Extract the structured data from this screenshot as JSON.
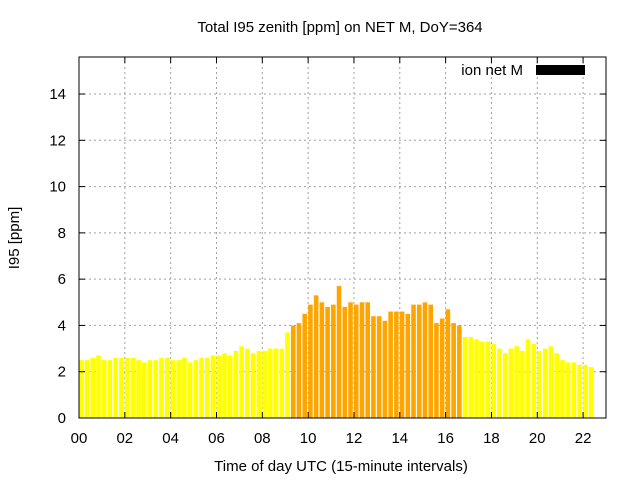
{
  "chart_data": {
    "type": "bar",
    "title": "Total I95 zenith [ppm] on NET M, DoY=364",
    "xlabel": "Time of day UTC (15-minute intervals)",
    "ylabel": "I95 [ppm]",
    "legend": {
      "label": "ion net M",
      "placement": "top-right",
      "color": "#000000"
    },
    "grid": true,
    "xlim": [
      0,
      23
    ],
    "ylim": [
      0,
      15.6
    ],
    "xticks": [
      "00",
      "02",
      "04",
      "06",
      "08",
      "10",
      "12",
      "14",
      "16",
      "18",
      "20",
      "22"
    ],
    "yticks": [
      "0",
      "2",
      "4",
      "6",
      "8",
      "10",
      "12",
      "14"
    ],
    "x_interval_hours": 0.25,
    "colors": {
      "low": "#ffff00",
      "elevated": "#ffa500"
    },
    "threshold": 4,
    "values": [
      2.5,
      2.5,
      2.6,
      2.7,
      2.5,
      2.5,
      2.6,
      2.6,
      2.6,
      2.6,
      2.5,
      2.4,
      2.5,
      2.5,
      2.6,
      2.6,
      2.5,
      2.5,
      2.6,
      2.4,
      2.5,
      2.6,
      2.6,
      2.7,
      2.7,
      2.8,
      2.7,
      2.9,
      3.1,
      3.0,
      2.8,
      2.9,
      2.9,
      3.0,
      3.0,
      3.0,
      3.7,
      4.0,
      4.1,
      4.5,
      4.9,
      5.3,
      5.0,
      4.8,
      4.9,
      5.7,
      4.8,
      5.0,
      4.9,
      5.0,
      5.0,
      4.4,
      4.4,
      4.2,
      4.6,
      4.6,
      4.6,
      4.5,
      4.9,
      4.9,
      5.0,
      4.9,
      4.1,
      4.3,
      4.7,
      4.1,
      4.0,
      3.5,
      3.5,
      3.4,
      3.3,
      3.3,
      3.2,
      3.0,
      2.8,
      3.0,
      3.1,
      2.9,
      3.4,
      3.2,
      2.9,
      3.0,
      3.1,
      2.8,
      2.5,
      2.4,
      2.4,
      2.3,
      2.3,
      2.2
    ]
  }
}
